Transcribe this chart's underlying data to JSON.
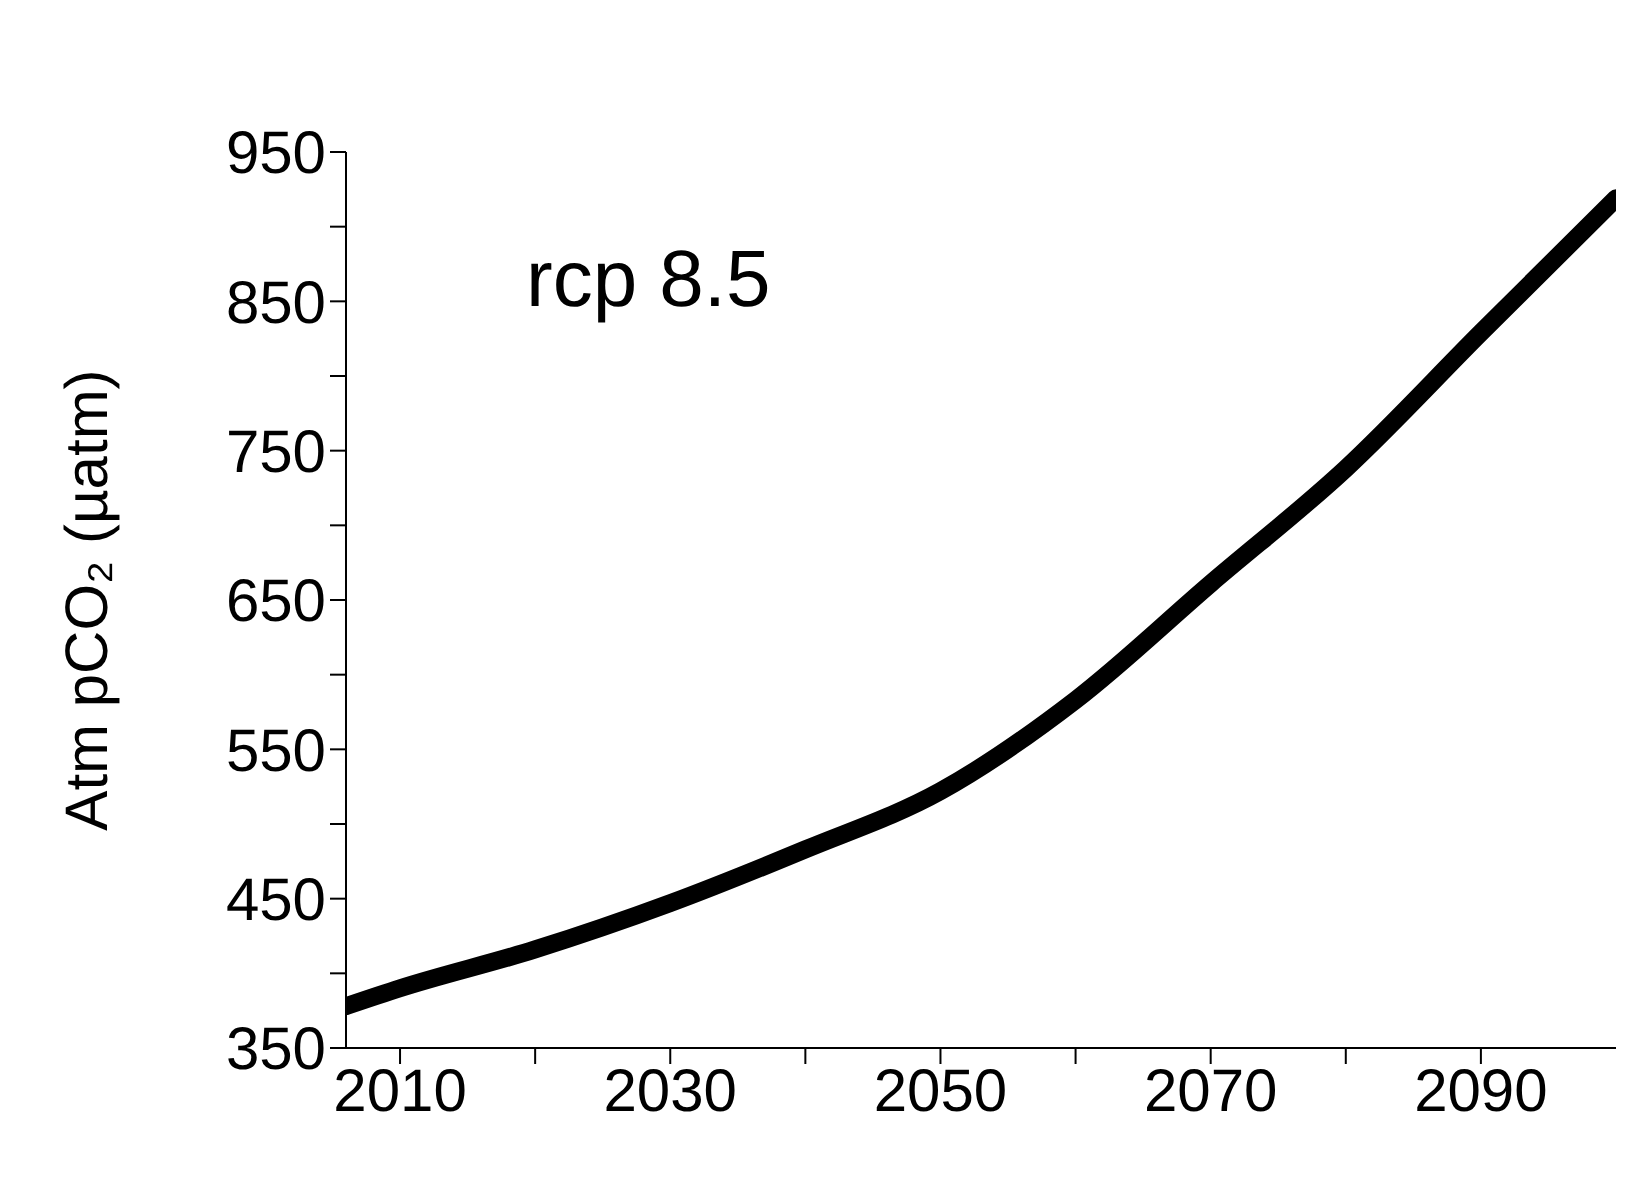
{
  "chart_data": {
    "type": "line",
    "ylabel": "Atm pCO₂ (µatm)",
    "annotations": [
      "rcp 8.5"
    ],
    "x": [
      2006,
      2010,
      2020,
      2030,
      2040,
      2050,
      2060,
      2070,
      2080,
      2090,
      2100
    ],
    "series": [
      {
        "color": "#000000",
        "values": [
          378,
          390,
          416,
          447,
          483,
          522,
          583,
          661,
          738,
          829,
          919
        ]
      }
    ],
    "xlim": [
      2006,
      2100
    ],
    "xticks": [
      2010,
      {
        "value": 2020,
        "label": null
      },
      2030,
      {
        "value": 2040,
        "label": null
      },
      2050,
      {
        "value": 2060,
        "label": null
      },
      2070,
      {
        "value": 2080,
        "label": null
      },
      2090
    ],
    "ylim": [
      350,
      950
    ],
    "yticks": [
      350,
      {
        "value": 400,
        "label": null
      },
      450,
      {
        "value": 500,
        "label": null
      },
      550,
      {
        "value": 600,
        "label": null
      },
      650,
      {
        "value": 700,
        "label": null
      },
      750,
      {
        "value": 800,
        "label": null
      },
      850,
      {
        "value": 900,
        "label": null
      },
      950
    ],
    "grid": false,
    "marker": "none",
    "line_style": "solid"
  }
}
